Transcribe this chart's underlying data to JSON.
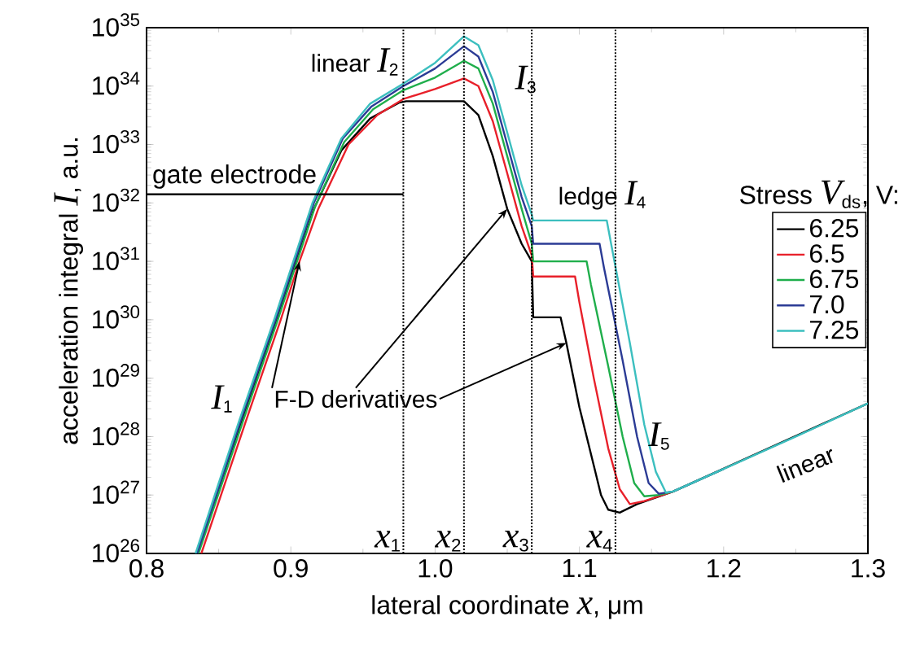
{
  "chart_data": {
    "type": "line",
    "xlabel": "lateral coordinate *x*, μm",
    "ylabel": "acceleration integral *I*, a.u.",
    "legend_title": "Stress *V*$_{ds}$, V:",
    "log": "y",
    "xlim": [
      0.8,
      1.3
    ],
    "ylim": [
      1e+26,
      1e+35
    ],
    "xticks": [
      0.8,
      0.9,
      {
        "value": 1.0,
        "label": "1.0"
      },
      1.1,
      1.2,
      1.3
    ],
    "yticks": [
      {
        "value": 1e+26,
        "label": "10$^{26}$"
      },
      {
        "value": 1e+27,
        "label": "10$^{27}$"
      },
      {
        "value": 1e+28,
        "label": "10$^{28}$"
      },
      {
        "value": 1e+29,
        "label": "10$^{29}$"
      },
      {
        "value": 1e+30,
        "label": "10$^{30}$"
      },
      {
        "value": 1e+31,
        "label": "10$^{31}$"
      },
      {
        "value": 1e+32,
        "label": "10$^{32}$"
      },
      {
        "value": 1e+33,
        "label": "10$^{33}$"
      },
      {
        "value": 1e+34,
        "label": "10$^{34}$"
      },
      {
        "value": 1e+35,
        "label": "10$^{35}$"
      }
    ],
    "legend": "right",
    "marker": "none",
    "line_style": "solid",
    "series": [
      {
        "name": "6.25",
        "color": "#000000",
        "x": [
          0.835,
          0.865,
          0.89,
          0.916,
          0.935,
          0.955,
          0.975,
          0.98,
          1.02,
          1.03,
          1.04,
          1.05,
          1.06,
          1.067,
          1.068,
          1.087,
          1.091,
          1.1,
          1.11,
          1.115,
          1.12,
          1.128,
          1.14,
          1.165,
          1.2,
          1.25,
          1.3
        ],
        "values": [
          1e+26,
          1.6e+28,
          1e+30,
          7.9e+31,
          7.9e+32,
          2.8e+33,
          5.2e+33,
          5.5e+33,
          5.5e+33,
          3.2e+33,
          6.3e+32,
          7.9e+31,
          2e+31,
          1e+31,
          1.1e+30,
          1.1e+30,
          4e+29,
          3.2e+28,
          3.2e+27,
          1e+27,
          5.6e+26,
          5e+26,
          7e+26,
          1.15e+27,
          null,
          null,
          3.7e+28
        ]
      },
      {
        "name": "6.5",
        "color": "#e8202a",
        "x": [
          0.838,
          0.868,
          0.893,
          0.906,
          0.919,
          0.94,
          0.96,
          0.978,
          1.0,
          1.02,
          1.03,
          1.04,
          1.05,
          1.06,
          1.067,
          1.068,
          1.097,
          1.1,
          1.11,
          1.12,
          1.128,
          1.135,
          1.145,
          1.165
        ],
        "values": [
          1e+26,
          1.6e+28,
          1e+30,
          1e+31,
          7.9e+31,
          1e+33,
          3.2e+33,
          6e+33,
          8.9e+33,
          1.35e+34,
          1e+34,
          2.5e+33,
          3.2e+32,
          4e+31,
          1.26e+31,
          5.5e+30,
          5.5e+30,
          2e+30,
          1e+29,
          6.3e+27,
          1.26e+27,
          7e+26,
          7.9e+26,
          1.15e+27
        ]
      },
      {
        "name": "6.75",
        "color": "#1fae4b",
        "x": [
          0.836,
          0.866,
          0.891,
          0.917,
          0.937,
          0.957,
          0.978,
          1.0,
          1.02,
          1.03,
          1.04,
          1.05,
          1.06,
          1.067,
          1.068,
          1.105,
          1.108,
          1.12,
          1.13,
          1.138,
          1.145,
          1.155,
          1.165,
          1.2
        ],
        "values": [
          1e+26,
          1.6e+28,
          1e+30,
          8.9e+31,
          1.1e+33,
          4e+33,
          8.5e+33,
          1.4e+34,
          2.7e+34,
          2e+34,
          5e+33,
          6.3e+32,
          7.9e+31,
          2e+31,
          1e+31,
          1e+31,
          4e+30,
          1.6e+29,
          1e+28,
          1.6e+27,
          9.5e+26,
          1e+27,
          1.15e+27,
          2.8e+27
        ]
      },
      {
        "name": "7.0",
        "color": "#2b3b95",
        "x": [
          0.835,
          0.865,
          0.89,
          0.916,
          0.936,
          0.956,
          0.978,
          1.0,
          1.02,
          1.03,
          1.04,
          1.05,
          1.06,
          1.067,
          1.068,
          1.114,
          1.117,
          1.13,
          1.14,
          1.148,
          1.155,
          1.165,
          1.2
        ],
        "values": [
          1e+26,
          1.8e+28,
          1.1e+30,
          1e+32,
          1.26e+33,
          4.5e+33,
          1e+34,
          2e+34,
          4.8e+34,
          3.2e+34,
          7.9e+33,
          1e+33,
          1.26e+32,
          4e+31,
          2e+31,
          2e+31,
          7.9e+30,
          2e+29,
          1e+28,
          1.6e+27,
          1.05e+27,
          1.15e+27,
          2.8e+27
        ]
      },
      {
        "name": "7.25",
        "color": "#3cbfbf",
        "x": [
          0.834,
          0.864,
          0.889,
          0.915,
          0.935,
          0.955,
          0.978,
          1.0,
          1.02,
          1.03,
          1.04,
          1.05,
          1.06,
          1.067,
          1.068,
          1.119,
          1.122,
          1.135,
          1.145,
          1.153,
          1.16,
          1.165,
          1.2,
          1.25,
          1.3
        ],
        "values": [
          1e+26,
          1.8e+28,
          1.1e+30,
          1e+32,
          1.26e+33,
          5e+33,
          1.1e+34,
          2.5e+34,
          7.1e+34,
          5e+34,
          1.26e+34,
          1.6e+33,
          2e+32,
          6.3e+31,
          5e+31,
          5e+31,
          2e+31,
          4e+29,
          1.6e+28,
          2.5e+27,
          1.1e+27,
          1.15e+27,
          2.8e+27,
          1e+28,
          3.7e+28
        ]
      },
      {
        "name": "gate electrode",
        "type": "line",
        "color": "#000000",
        "x": [
          0.8,
          0.978
        ],
        "values": [
          1.4e+32,
          1.4e+32
        ]
      }
    ],
    "ref_lines": [
      {
        "axis": "x",
        "value": 0.978,
        "label": "*x*$_{1}$",
        "line_style": "dotted"
      },
      {
        "axis": "x",
        "value": 1.02,
        "label": "*x*$_{2}$",
        "line_style": "dotted"
      },
      {
        "axis": "x",
        "value": 1.067,
        "label": "*x*$_{3}$",
        "line_style": "dotted"
      },
      {
        "axis": "x",
        "value": 1.125,
        "label": "*x*$_{4}$",
        "line_style": "dotted"
      }
    ],
    "annotations": [
      "linear *I*$_{2}$",
      {
        "text": "*I*$_{3}$",
        "x": 1.063,
        "y": 1.3e+34
      },
      "ledge *I*$_{4}$",
      "*I*$_{5}$",
      "*I*$_{1}$",
      "linear",
      {
        "text": "F-D derivatives",
        "x": 0.906,
        "y": 1e+31
      }
    ]
  }
}
